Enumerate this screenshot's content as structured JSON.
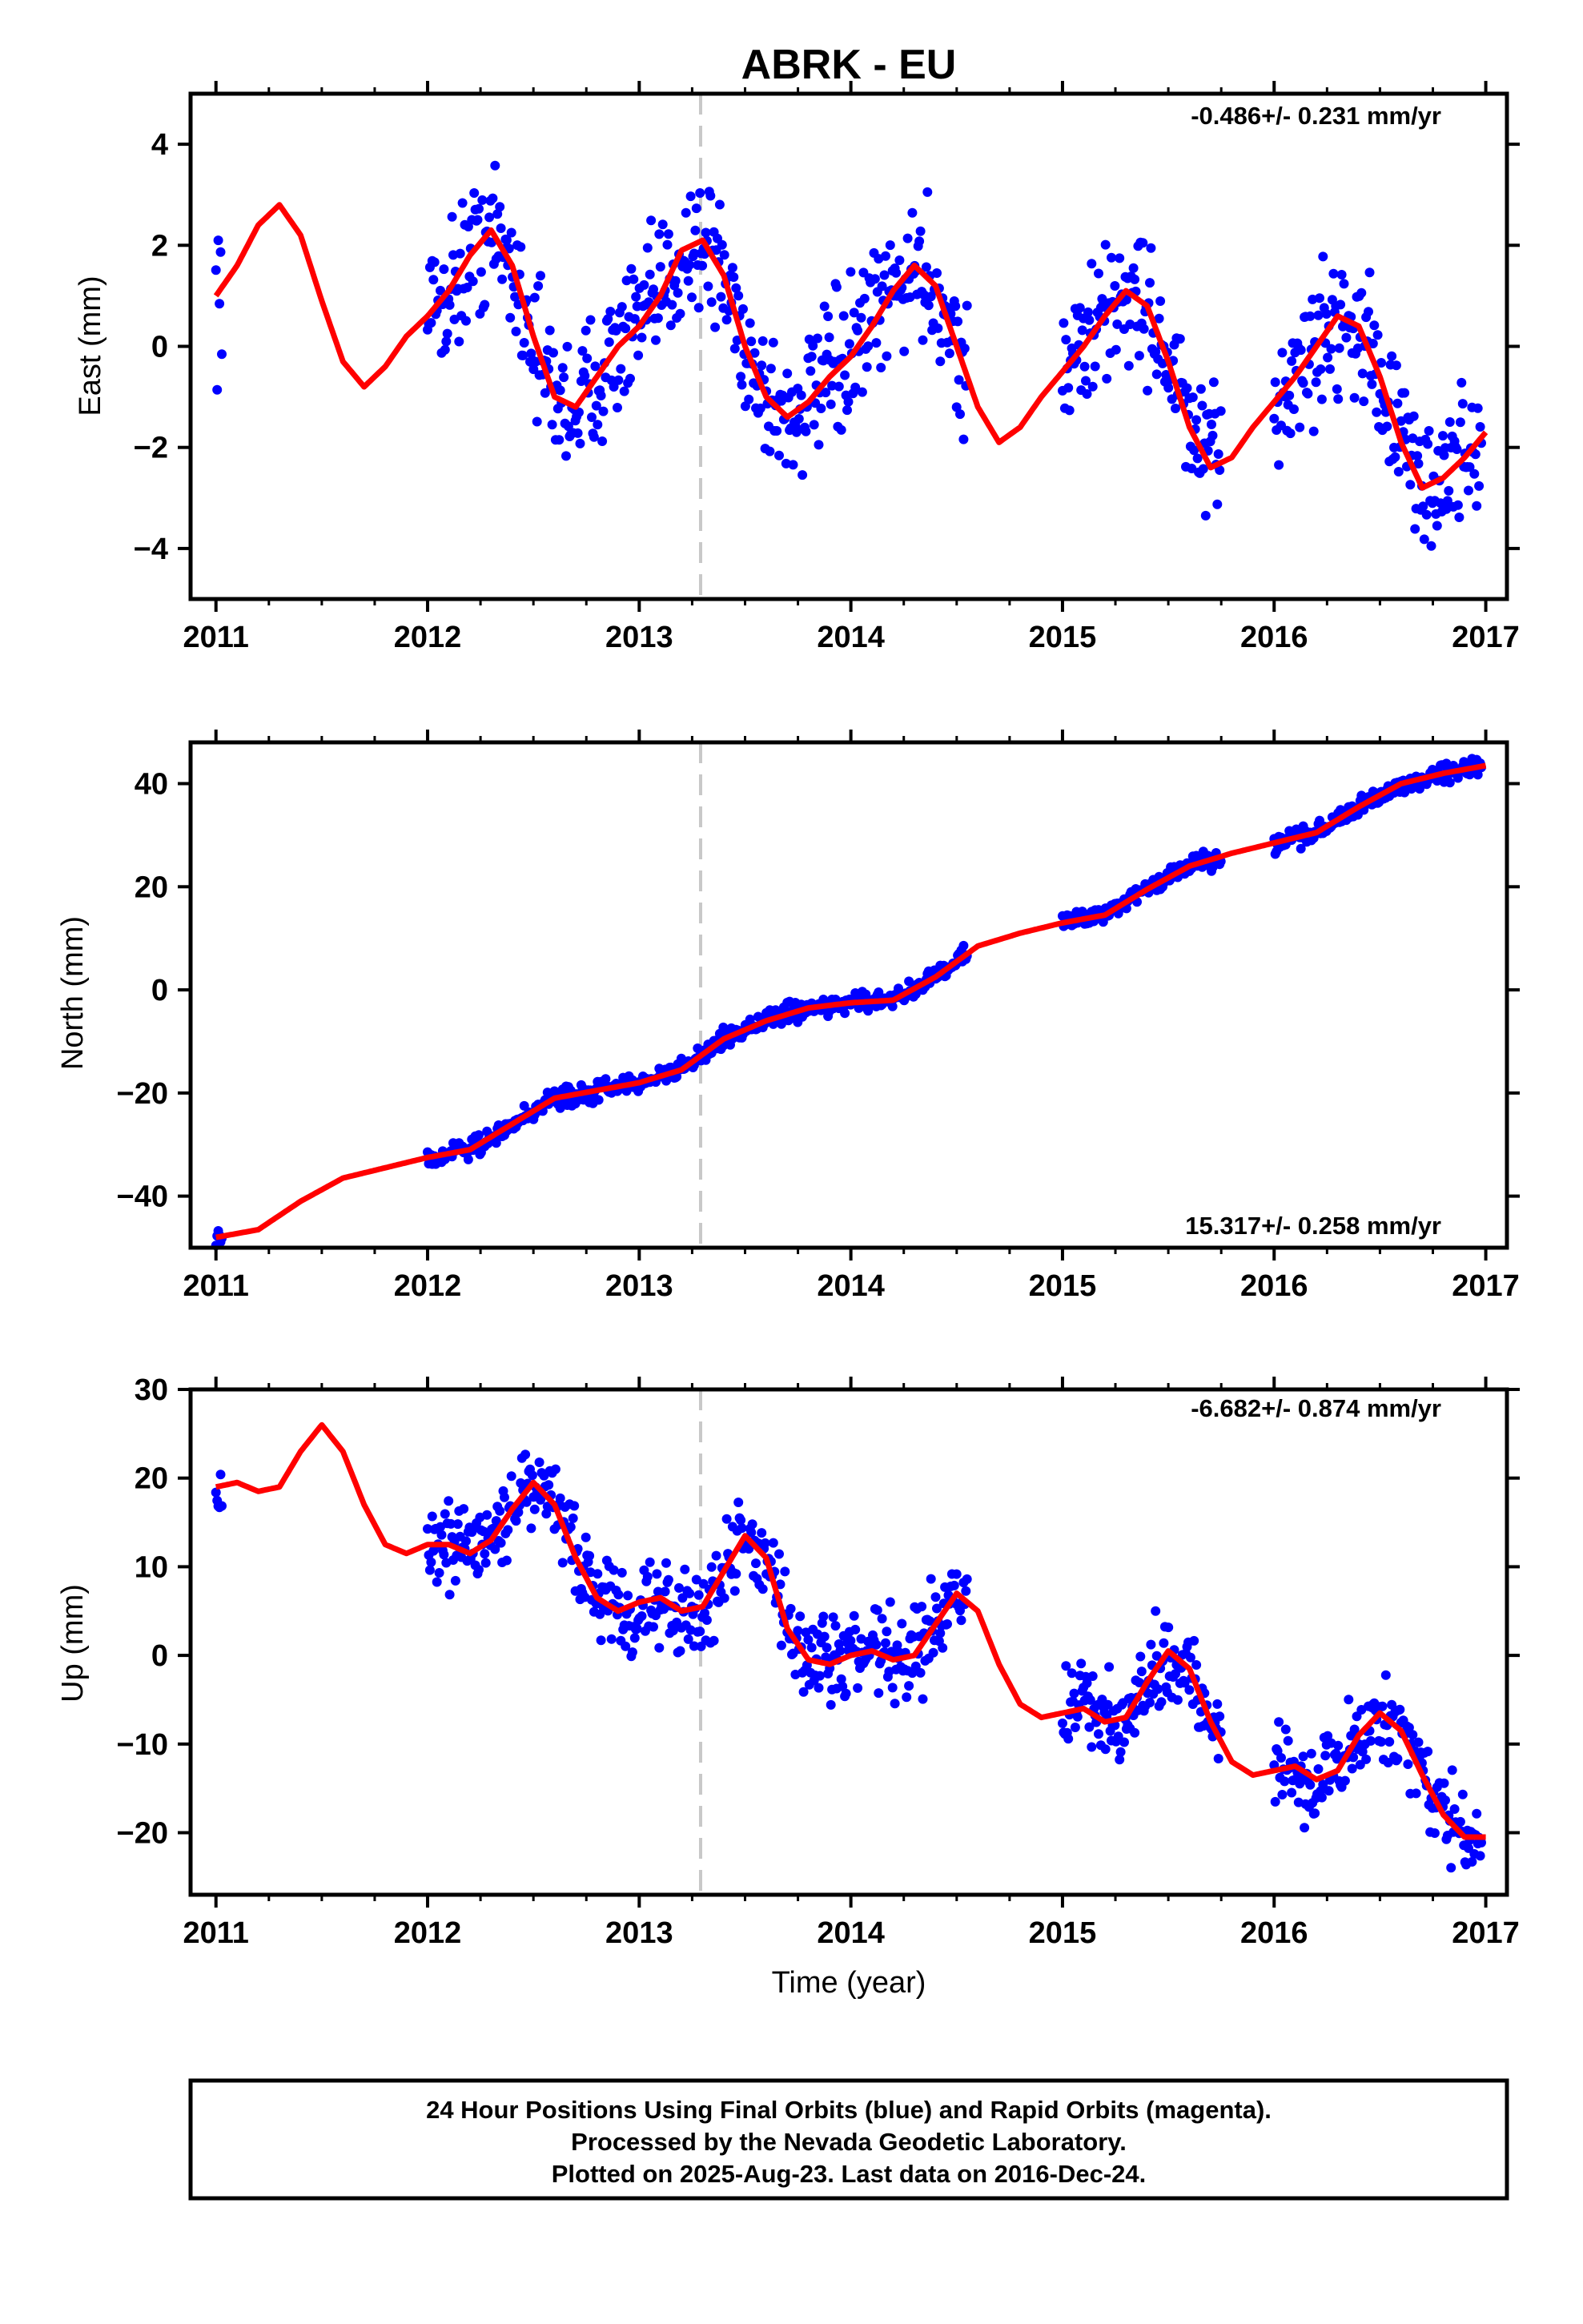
{
  "title": "ABRK - EU",
  "xlabel": "Time (year)",
  "footer": {
    "line1": "24 Hour Positions Using Final Orbits (blue) and Rapid Orbits (magenta).",
    "line2": "Processed by the Nevada Geodetic Laboratory.",
    "line3": "Plotted on 2025-Aug-23. Last data on 2016-Dec-24."
  },
  "colors": {
    "points": "#0000ff",
    "model": "#ff0000",
    "event_line": "#c8c8c8"
  },
  "chart_data": [
    {
      "type": "scatter",
      "component": "East",
      "ylabel": "East (mm)",
      "rate_label": "-0.486+/- 0.231 mm/yr",
      "rate_position": "top-right",
      "xlim": [
        2010.88,
        2017.1
      ],
      "ylim": [
        -5.0,
        5.0
      ],
      "xticks": [
        2011,
        2012,
        2013,
        2014,
        2015,
        2016,
        2017
      ],
      "yticks": [
        -4,
        -2,
        0,
        2,
        4
      ],
      "event_line_x": 2013.29,
      "model_curve": {
        "x": [
          2011.0,
          2011.1,
          2011.2,
          2011.3,
          2011.4,
          2011.5,
          2011.6,
          2011.7,
          2011.8,
          2011.9,
          2012.0,
          2012.1,
          2012.2,
          2012.3,
          2012.4,
          2012.5,
          2012.6,
          2012.7,
          2012.8,
          2012.9,
          2013.0,
          2013.1,
          2013.2,
          2013.3,
          2013.4,
          2013.5,
          2013.6,
          2013.7,
          2013.8,
          2013.9,
          2014.0,
          2014.1,
          2014.2,
          2014.3,
          2014.4,
          2014.5,
          2014.6,
          2014.7,
          2014.8,
          2014.9,
          2015.0,
          2015.1,
          2015.2,
          2015.3,
          2015.4,
          2015.5,
          2015.6,
          2015.7,
          2015.8,
          2015.9,
          2016.0,
          2016.1,
          2016.2,
          2016.3,
          2016.4,
          2016.5,
          2016.6,
          2016.7,
          2016.8,
          2016.9,
          2017.0
        ],
        "y": [
          1.0,
          1.6,
          2.4,
          2.8,
          2.2,
          0.9,
          -0.3,
          -0.8,
          -0.4,
          0.2,
          0.6,
          1.1,
          1.8,
          2.3,
          1.6,
          0.2,
          -1.0,
          -1.2,
          -0.6,
          0.0,
          0.4,
          1.0,
          1.9,
          2.1,
          1.4,
          0.0,
          -1.0,
          -1.4,
          -1.1,
          -0.6,
          -0.2,
          0.4,
          1.1,
          1.6,
          1.2,
          0.0,
          -1.2,
          -1.9,
          -1.6,
          -1.0,
          -0.5,
          0.0,
          0.6,
          1.1,
          0.8,
          -0.3,
          -1.6,
          -2.4,
          -2.2,
          -1.6,
          -1.1,
          -0.6,
          0.0,
          0.6,
          0.4,
          -0.6,
          -1.9,
          -2.8,
          -2.6,
          -2.2,
          -1.7
        ]
      },
      "data_windows": [
        [
          2011.0,
          2011.03
        ],
        [
          2012.0,
          2013.9
        ],
        [
          2013.9,
          2014.55
        ],
        [
          2015.0,
          2015.75
        ],
        [
          2016.0,
          2016.98
        ]
      ],
      "scatter_spread": 0.9
    },
    {
      "type": "scatter",
      "component": "North",
      "ylabel": "North (mm)",
      "rate_label": "15.317+/- 0.258 mm/yr",
      "rate_position": "bottom-right",
      "xlim": [
        2010.88,
        2017.1
      ],
      "ylim": [
        -50,
        48
      ],
      "xticks": [
        2011,
        2012,
        2013,
        2014,
        2015,
        2016,
        2017
      ],
      "yticks": [
        -40,
        -20,
        0,
        20,
        40
      ],
      "event_line_x": 2013.29,
      "model_curve": {
        "x": [
          2011.0,
          2011.2,
          2011.4,
          2011.6,
          2011.8,
          2012.0,
          2012.2,
          2012.4,
          2012.6,
          2012.8,
          2013.0,
          2013.2,
          2013.4,
          2013.6,
          2013.8,
          2014.0,
          2014.2,
          2014.4,
          2014.6,
          2014.8,
          2015.0,
          2015.2,
          2015.4,
          2015.6,
          2015.8,
          2016.0,
          2016.2,
          2016.4,
          2016.6,
          2016.8,
          2017.0
        ],
        "y": [
          -48.0,
          -46.5,
          -41.0,
          -36.5,
          -34.5,
          -32.5,
          -31.0,
          -26.0,
          -21.0,
          -19.5,
          -18.0,
          -15.5,
          -9.5,
          -6.0,
          -3.5,
          -2.5,
          -2.0,
          2.5,
          8.5,
          11.0,
          13.0,
          14.5,
          19.5,
          24.0,
          26.5,
          28.5,
          30.5,
          35.5,
          40.0,
          42.0,
          43.5
        ]
      },
      "data_windows": [
        [
          2011.0,
          2011.03
        ],
        [
          2012.0,
          2013.9
        ],
        [
          2013.9,
          2014.55
        ],
        [
          2015.0,
          2015.75
        ],
        [
          2016.0,
          2016.98
        ]
      ],
      "scatter_spread": 1.2
    },
    {
      "type": "scatter",
      "component": "Up",
      "ylabel": "Up (mm)",
      "rate_label": "-6.682+/- 0.874 mm/yr",
      "rate_position": "top-right",
      "xlim": [
        2010.88,
        2017.1
      ],
      "ylim": [
        -27,
        30
      ],
      "xticks": [
        2011,
        2012,
        2013,
        2014,
        2015,
        2016,
        2017
      ],
      "yticks": [
        -20,
        -10,
        0,
        10,
        20,
        30
      ],
      "event_line_x": 2013.29,
      "model_curve": {
        "x": [
          2011.0,
          2011.1,
          2011.2,
          2011.3,
          2011.4,
          2011.5,
          2011.6,
          2011.7,
          2011.8,
          2011.9,
          2012.0,
          2012.1,
          2012.2,
          2012.3,
          2012.4,
          2012.5,
          2012.6,
          2012.7,
          2012.8,
          2012.9,
          2013.0,
          2013.1,
          2013.2,
          2013.3,
          2013.4,
          2013.5,
          2013.6,
          2013.7,
          2013.8,
          2013.9,
          2014.0,
          2014.1,
          2014.2,
          2014.3,
          2014.4,
          2014.5,
          2014.6,
          2014.7,
          2014.8,
          2014.9,
          2015.0,
          2015.1,
          2015.2,
          2015.3,
          2015.4,
          2015.5,
          2015.6,
          2015.7,
          2015.8,
          2015.9,
          2016.0,
          2016.1,
          2016.2,
          2016.3,
          2016.4,
          2016.5,
          2016.6,
          2016.7,
          2016.8,
          2016.9,
          2017.0
        ],
        "y": [
          19.0,
          19.5,
          18.5,
          19.0,
          23.0,
          26.0,
          23.0,
          17.0,
          12.5,
          11.5,
          12.5,
          12.5,
          11.5,
          13.0,
          16.5,
          19.5,
          17.0,
          11.0,
          6.5,
          5.0,
          6.0,
          6.5,
          5.0,
          5.5,
          9.5,
          13.5,
          11.0,
          3.0,
          -0.5,
          -1.0,
          0.0,
          0.5,
          -0.5,
          0.0,
          3.5,
          7.0,
          5.0,
          -1.0,
          -5.5,
          -7.0,
          -6.5,
          -6.0,
          -7.5,
          -7.0,
          -3.0,
          0.5,
          -1.5,
          -7.5,
          -12.0,
          -13.5,
          -13.0,
          -12.5,
          -14.0,
          -13.0,
          -9.0,
          -6.5,
          -8.5,
          -13.5,
          -18.0,
          -20.5,
          -20.5
        ]
      },
      "data_windows": [
        [
          2011.0,
          2011.03
        ],
        [
          2012.0,
          2013.9
        ],
        [
          2013.9,
          2014.55
        ],
        [
          2015.0,
          2015.75
        ],
        [
          2016.0,
          2016.98
        ]
      ],
      "scatter_spread": 3.2
    }
  ]
}
